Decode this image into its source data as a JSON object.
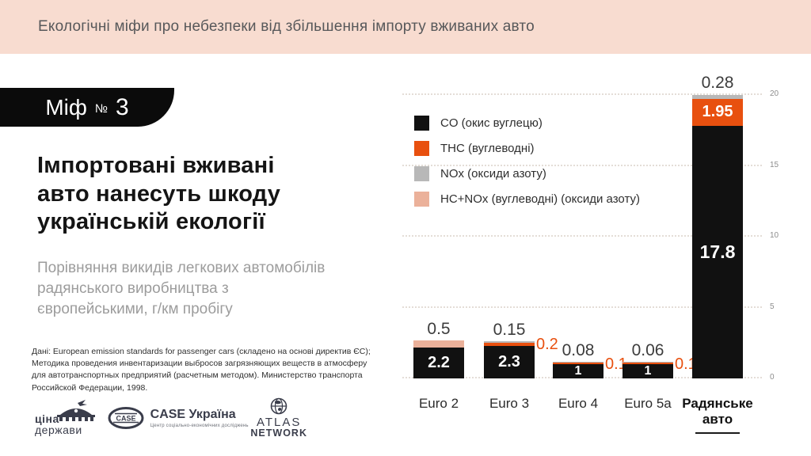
{
  "banner": {
    "title": "Екологічні міфи про небезпеки від збільшення імпорту вживаних авто",
    "bg": "#f8dcd0"
  },
  "badge": {
    "word": "Міф",
    "numero": "№",
    "number": "3"
  },
  "headline": "Імпортовані вживані авто нанесуть шкоду українській екології",
  "subtitle": "Порівняння викидів легкових автомобілів радянського виробництва з європейськими, г/км пробігу",
  "source_note": "Дані: European emission standards for passenger cars (складено на основі директив ЄС); Методика проведения инвентаризации выбросов загрязняющих веществ в атмосферу для автотранспортных предприятий (расчетным методом). Министерство транспорта Российской Федерации, 1998.",
  "logos": {
    "tsina": {
      "line1": "ціна",
      "line2": "держави"
    },
    "case": {
      "oval": "CASE",
      "title": "CASE Україна",
      "subtitle": "Центр соціально-економічних досліджень"
    },
    "atlas": {
      "line1": "ATLAS",
      "line2": "NETWORK"
    }
  },
  "chart_data": {
    "type": "bar",
    "stacked": true,
    "title": "",
    "xlabel": "",
    "ylabel": "г/км пробігу",
    "ylim": [
      0,
      20
    ],
    "yticks": [
      0,
      5,
      10,
      15,
      20
    ],
    "grid": "horizontal-dotted",
    "legend_position": "top-left-inside",
    "categories": [
      "Euro 2",
      "Euro 3",
      "Euro 4",
      "Euro 5a",
      "Радянське авто"
    ],
    "emphasized_category_index": 4,
    "series": [
      {
        "name": "CO (окис вуглецю)",
        "color": "#111111",
        "values": [
          2.2,
          2.3,
          1,
          1,
          17.8
        ]
      },
      {
        "name": "THC (вуглеводні)",
        "color": "#e8500f",
        "values": [
          null,
          0.2,
          0.1,
          0.1,
          1.95
        ]
      },
      {
        "name": "NOx (оксиди азоту)",
        "color": "#b8b8b8",
        "values": [
          null,
          0.15,
          0.08,
          0.06,
          0.28
        ]
      },
      {
        "name": "HC+NOx (вуглеводні) (оксиди азоту)",
        "color": "#ebb19a",
        "values": [
          0.5,
          null,
          null,
          null,
          null
        ]
      }
    ]
  }
}
